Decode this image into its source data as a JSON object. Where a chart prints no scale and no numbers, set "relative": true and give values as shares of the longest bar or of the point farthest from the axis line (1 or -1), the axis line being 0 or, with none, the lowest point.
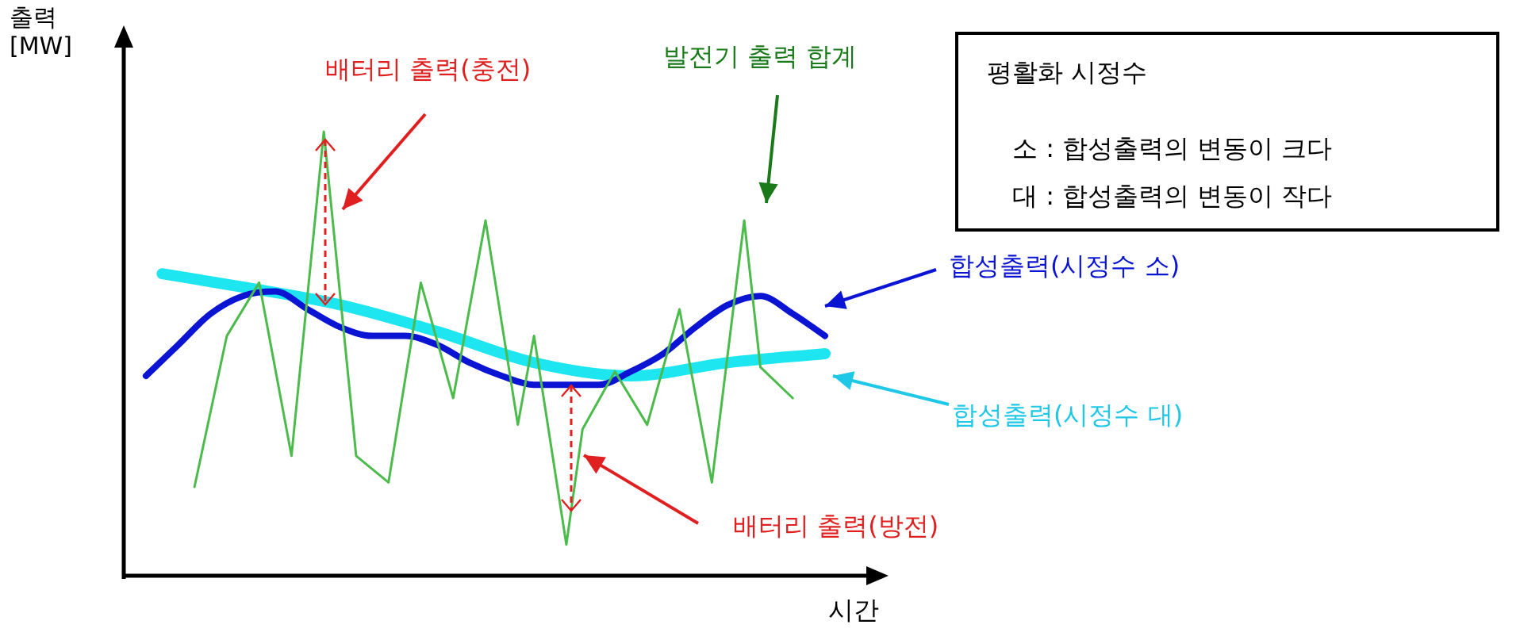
{
  "chart_data": {
    "type": "line",
    "relative": true,
    "xlabel": "시간",
    "ylabel": "출력\n[MW]",
    "legend": false,
    "categories": [
      null,
      null,
      null,
      null,
      null,
      null,
      null,
      null,
      null,
      null,
      null,
      null,
      null,
      null,
      null,
      null,
      null,
      null,
      null,
      null,
      null,
      null,
      null,
      null,
      null,
      null,
      null,
      null,
      null,
      null,
      null,
      null,
      null,
      null,
      null,
      null,
      null,
      null,
      null,
      null,
      null,
      null,
      null
    ],
    "series": [
      {
        "name": "발전기 출력 합계",
        "color": "#4cbb4c",
        "values": [
          null,
          null,
          null,
          0.2,
          null,
          0.54,
          null,
          0.66,
          null,
          0.27,
          null,
          1,
          null,
          0.27,
          null,
          0.21,
          null,
          0.66,
          null,
          0.4,
          null,
          0.8,
          null,
          0.34,
          0.54,
          null,
          0.07,
          0.33,
          null,
          0.46,
          null,
          0.34,
          null,
          0.6,
          null,
          0.21,
          null,
          0.8,
          0.47,
          null,
          0.4,
          null,
          null
        ]
      },
      {
        "name": "합성출력(시정수 소)",
        "color": "#0a14d2",
        "values": [
          0.45,
          null,
          0.52,
          null,
          0.59,
          null,
          0.63,
          null,
          0.64,
          null,
          0.6,
          null,
          0.56,
          null,
          0.54,
          null,
          0.54,
          null,
          0.52,
          null,
          0.48,
          null,
          0.45,
          null,
          0.43,
          null,
          0.43,
          null,
          0.43,
          null,
          0.46,
          null,
          0.5,
          null,
          0.56,
          null,
          0.61,
          null,
          0.63,
          null,
          0.59,
          null,
          0.54
        ]
      },
      {
        "name": "합성출력(시정수 대)",
        "color": "#1ee6f0",
        "values": [
          null,
          0.68,
          null,
          null,
          null,
          null,
          0.65,
          null,
          null,
          null,
          null,
          null,
          0.61,
          null,
          null,
          null,
          null,
          null,
          0.55,
          null,
          null,
          null,
          null,
          null,
          0.48,
          null,
          null,
          null,
          null,
          null,
          0.45,
          null,
          null,
          null,
          null,
          null,
          0.48,
          null,
          null,
          null,
          null,
          null,
          0.5
        ]
      }
    ],
    "annotations": [
      "배터리 출력(충전)",
      "배터리 출력(방전)",
      "평활화 시정수",
      "소 : 합성출력의 변동이 크다",
      "대 : 합성출력의 변동이 작다"
    ]
  }
}
